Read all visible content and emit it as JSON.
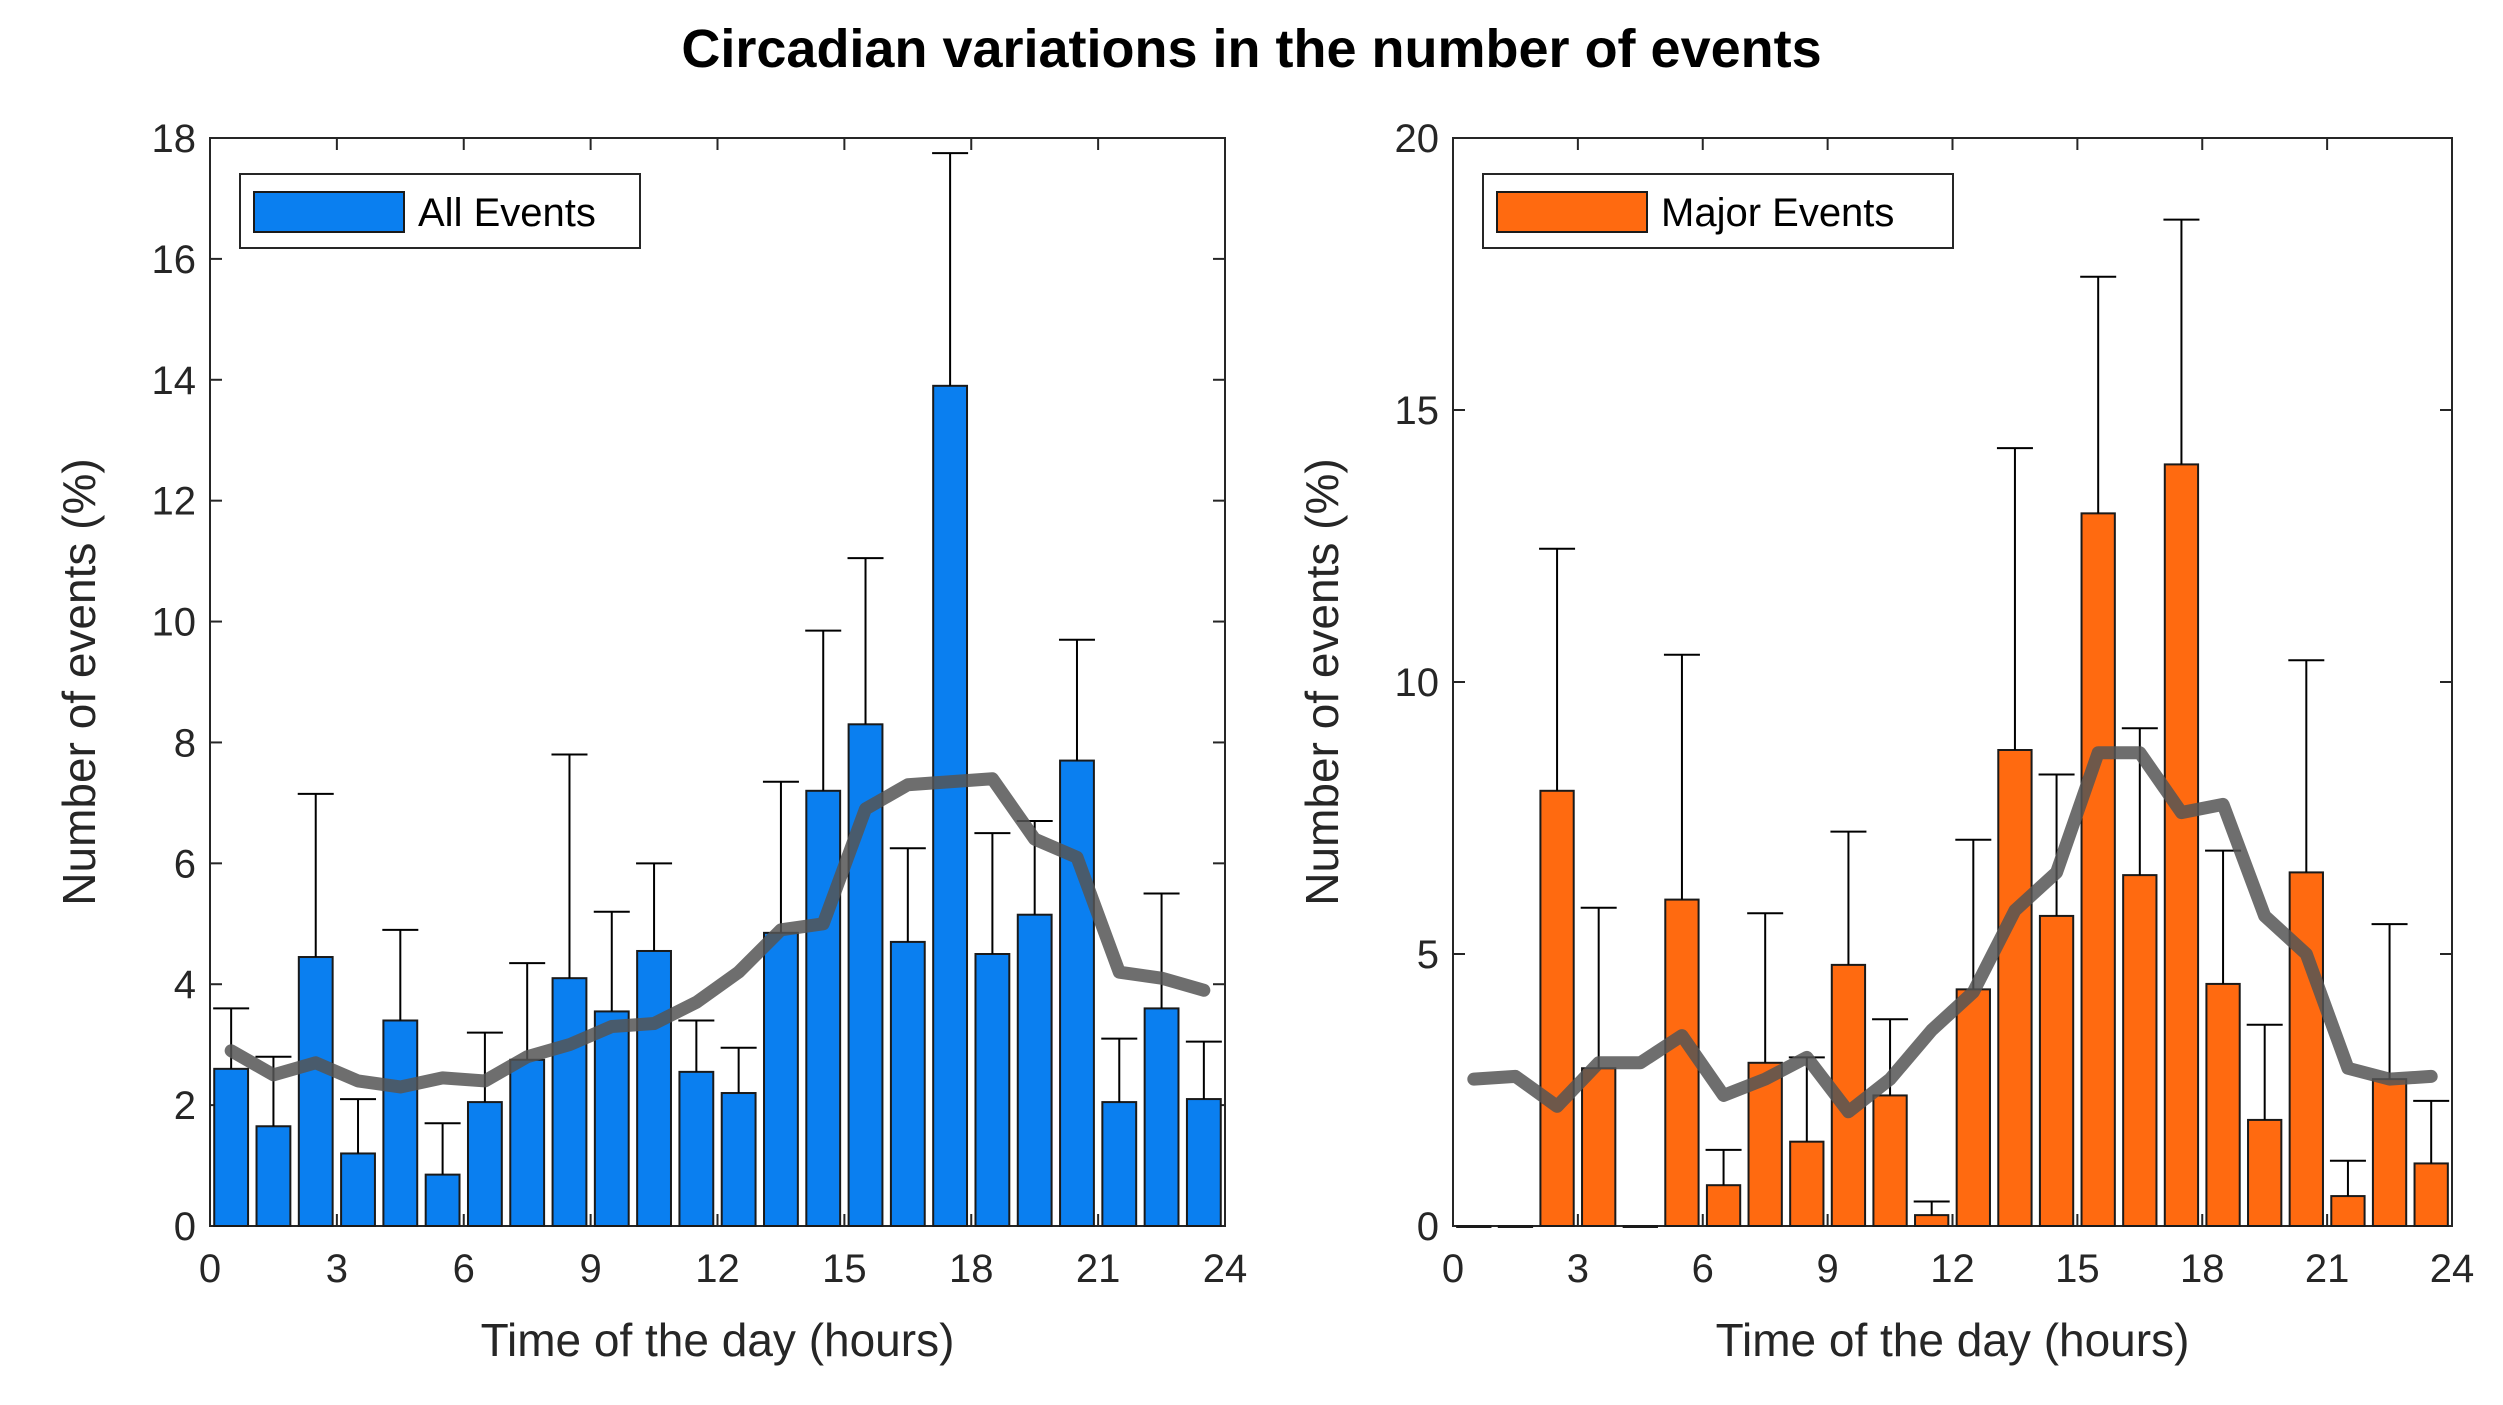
{
  "title": "Circadian variations in the number of events",
  "chart_data": [
    {
      "type": "bar",
      "name": "all-events",
      "legend": "All Events",
      "color": "#0a7ff0",
      "x": [
        0.5,
        1.5,
        2.5,
        3.5,
        4.5,
        5.5,
        6.5,
        7.5,
        8.5,
        9.5,
        10.5,
        11.5,
        12.5,
        13.5,
        14.5,
        15.5,
        16.5,
        17.5,
        18.5,
        19.5,
        20.5,
        21.5,
        22.5,
        23.5
      ],
      "values": [
        2.6,
        1.65,
        4.45,
        1.2,
        3.4,
        0.85,
        2.05,
        2.75,
        4.1,
        3.55,
        4.55,
        2.55,
        2.2,
        4.85,
        7.2,
        8.3,
        4.7,
        13.9,
        4.5,
        5.15,
        7.7,
        2.05,
        3.6,
        2.1
      ],
      "error_upper": [
        3.6,
        2.8,
        7.15,
        2.1,
        4.9,
        1.7,
        3.2,
        4.35,
        7.8,
        5.2,
        6.0,
        3.4,
        2.95,
        7.35,
        9.85,
        11.05,
        6.25,
        17.75,
        6.5,
        6.7,
        9.7,
        3.1,
        5.5,
        3.05
      ],
      "trend_line": [
        2.9,
        2.5,
        2.7,
        2.4,
        2.3,
        2.45,
        2.4,
        2.8,
        3.0,
        3.3,
        3.35,
        3.7,
        4.2,
        4.9,
        5.0,
        6.9,
        7.3,
        7.35,
        7.4,
        6.4,
        6.1,
        4.2,
        4.1,
        3.9
      ],
      "xlabel": "Time of the day (hours)",
      "ylabel": "Number of events (%)",
      "xlim": [
        0,
        24
      ],
      "ylim": [
        0,
        18
      ],
      "xticks": [
        "0",
        "3",
        "6",
        "9",
        "12",
        "15",
        "18",
        "21",
        "24"
      ],
      "yticks": [
        "0",
        "2",
        "4",
        "6",
        "8",
        "10",
        "12",
        "14",
        "16",
        "18"
      ],
      "legend_position": "top-left"
    },
    {
      "type": "bar",
      "name": "major-events",
      "legend": "Major Events",
      "color": "#ff6a10",
      "x": [
        0.5,
        1.5,
        2.5,
        3.5,
        4.5,
        5.5,
        6.5,
        7.5,
        8.5,
        9.5,
        10.5,
        11.5,
        12.5,
        13.5,
        14.5,
        15.5,
        16.5,
        17.5,
        18.5,
        19.5,
        20.5,
        21.5,
        22.5,
        23.5
      ],
      "values": [
        0,
        0,
        8.0,
        2.9,
        0,
        6.0,
        0.75,
        3.0,
        1.55,
        4.8,
        2.4,
        0.2,
        4.35,
        8.75,
        5.7,
        13.1,
        6.45,
        14.0,
        4.45,
        1.95,
        6.5,
        0.55,
        2.7,
        1.15
      ],
      "error_upper": [
        0,
        0,
        12.45,
        5.85,
        0,
        10.5,
        1.4,
        5.75,
        3.1,
        7.25,
        3.8,
        0.45,
        7.1,
        14.3,
        8.3,
        17.45,
        9.15,
        18.5,
        6.9,
        3.7,
        10.4,
        1.2,
        5.55,
        2.3
      ],
      "trend_line": [
        2.7,
        2.75,
        2.2,
        3.0,
        3.0,
        3.5,
        2.4,
        2.7,
        3.1,
        2.1,
        2.7,
        3.6,
        4.3,
        5.8,
        6.5,
        8.7,
        8.7,
        7.6,
        7.75,
        5.7,
        5.0,
        2.9,
        2.7,
        2.75
      ],
      "xlabel": "Time of the day (hours)",
      "ylabel": "Number of events (%)",
      "xlim": [
        0,
        24
      ],
      "ylim": [
        0,
        20
      ],
      "xticks": [
        "0",
        "3",
        "6",
        "9",
        "12",
        "15",
        "18",
        "21",
        "24"
      ],
      "yticks": [
        "0",
        "5",
        "10",
        "15",
        "20"
      ],
      "legend_position": "top-left"
    }
  ],
  "colors": {
    "trend": "#555555",
    "axis": "#262626",
    "error": "#000000"
  }
}
